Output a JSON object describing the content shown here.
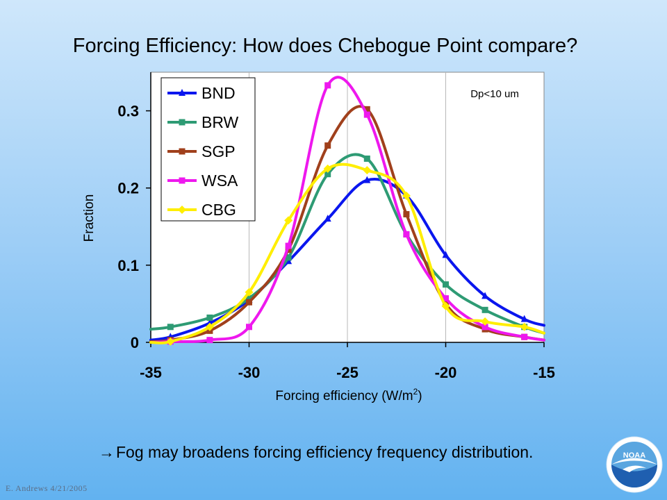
{
  "slide": {
    "title": "Forcing Efficiency: How does Chebogue Point compare?",
    "note_arrow": "→",
    "note": "Fog may broadens forcing efficiency frequency distribution.",
    "footer": "E. Andrews  4/21/2005",
    "logo_text": "NOAA"
  },
  "chart_data": {
    "type": "line",
    "title": "",
    "xlabel_main": "Forcing efficiency (W/m",
    "xlabel_sup": "2",
    "xlabel_close": ")",
    "ylabel": "Fraction",
    "xlim": [
      -35,
      -15
    ],
    "ylim": [
      0,
      0.35
    ],
    "x_ticks": [
      -35,
      -30,
      -25,
      -20,
      -15
    ],
    "x_tick_labels": [
      "-35",
      "-30",
      "-25",
      "-20",
      "-15"
    ],
    "y_ticks": [
      0,
      0.1,
      0.2,
      0.3
    ],
    "y_tick_labels": [
      "0",
      "0.1",
      "0.2",
      "0.3"
    ],
    "grid": "vertical",
    "legend_position": "top-left",
    "annotation": "Dp<10 um",
    "series": [
      {
        "name": "BND",
        "color": "#0a16ee",
        "marker": "triangle",
        "x": [
          -35,
          -34,
          -32,
          -30,
          -28,
          -26,
          -24,
          -22,
          -20,
          -18,
          -16,
          -15
        ],
        "y": [
          0.003,
          0.007,
          0.025,
          0.055,
          0.105,
          0.16,
          0.21,
          0.19,
          0.113,
          0.06,
          0.03,
          0.022
        ]
      },
      {
        "name": "BRW",
        "color": "#2e9b74",
        "marker": "square",
        "x": [
          -35,
          -34,
          -32,
          -30,
          -28,
          -26,
          -24,
          -22,
          -20,
          -18,
          -16,
          -15
        ],
        "y": [
          0.017,
          0.02,
          0.032,
          0.057,
          0.11,
          0.218,
          0.238,
          0.14,
          0.075,
          0.042,
          0.02,
          0.012
        ]
      },
      {
        "name": "SGP",
        "color": "#a0401c",
        "marker": "square",
        "x": [
          -35,
          -34,
          -32,
          -30,
          -28,
          -26,
          -24,
          -22,
          -20,
          -18,
          -16,
          -15
        ],
        "y": [
          0.001,
          0.003,
          0.015,
          0.052,
          0.12,
          0.255,
          0.302,
          0.166,
          0.05,
          0.017,
          0.007,
          0.003
        ]
      },
      {
        "name": "WSA",
        "color": "#ee18ee",
        "marker": "square",
        "x": [
          -35,
          -34,
          -32,
          -30,
          -28,
          -26,
          -24,
          -22,
          -20,
          -18,
          -16,
          -15
        ],
        "y": [
          0.0,
          0.001,
          0.003,
          0.02,
          0.125,
          0.333,
          0.295,
          0.14,
          0.057,
          0.02,
          0.007,
          0.003
        ]
      },
      {
        "name": "CBG",
        "color": "#ffee00",
        "marker": "diamond",
        "x": [
          -35,
          -34,
          -32,
          -30,
          -28,
          -26,
          -24,
          -22,
          -20,
          -18,
          -16,
          -15
        ],
        "y": [
          0.0,
          0.001,
          0.02,
          0.065,
          0.158,
          0.225,
          0.223,
          0.19,
          0.047,
          0.027,
          0.02,
          0.012
        ]
      }
    ]
  }
}
